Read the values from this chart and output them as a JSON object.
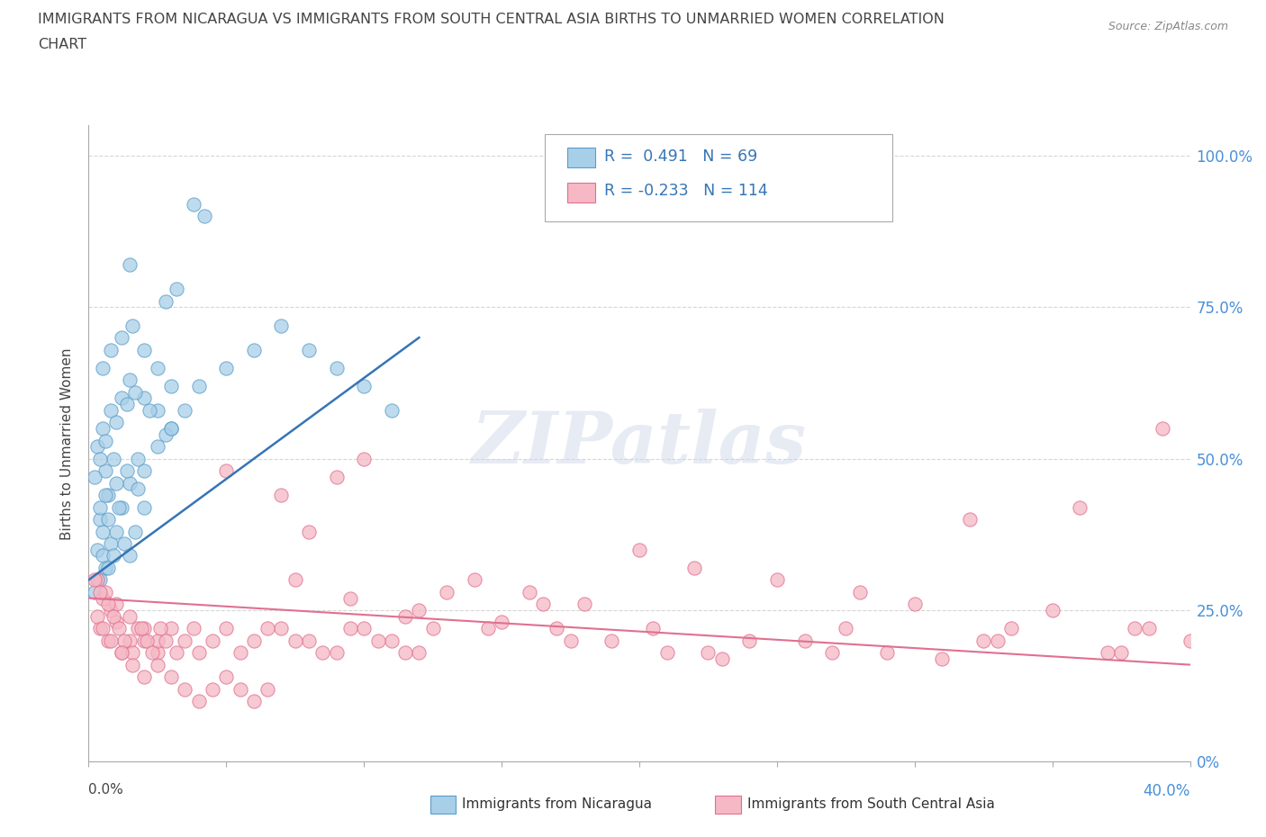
{
  "title_line1": "IMMIGRANTS FROM NICARAGUA VS IMMIGRANTS FROM SOUTH CENTRAL ASIA BIRTHS TO UNMARRIED WOMEN CORRELATION",
  "title_line2": "CHART",
  "source": "Source: ZipAtlas.com",
  "ylabel": "Births to Unmarried Women",
  "ytick_vals": [
    0,
    25,
    50,
    75,
    100
  ],
  "ytick_labels": [
    "0%",
    "25.0%",
    "50.0%",
    "75.0%",
    "100.0%"
  ],
  "right_ytick_labels": [
    "0%",
    "25.0%",
    "50.0%",
    "75.0%",
    "100.0%"
  ],
  "xlim": [
    0,
    40
  ],
  "ylim": [
    0,
    105
  ],
  "nicaragua_color": "#a8cfe8",
  "nicaragua_edge": "#5b9dc9",
  "sca_color": "#f5b8c4",
  "sca_edge": "#e07090",
  "nic_line_color": "#3575b5",
  "sca_line_color": "#e07090",
  "watermark": "ZIPatlas",
  "nic_trend": [
    0.0,
    30.0,
    12.0,
    70.0
  ],
  "sca_trend": [
    0.0,
    27.0,
    40.0,
    16.0
  ],
  "nicaragua_points": [
    [
      0.3,
      35
    ],
    [
      0.5,
      34
    ],
    [
      0.8,
      36
    ],
    [
      1.0,
      38
    ],
    [
      0.4,
      40
    ],
    [
      0.7,
      44
    ],
    [
      1.2,
      42
    ],
    [
      1.5,
      46
    ],
    [
      0.6,
      48
    ],
    [
      0.9,
      50
    ],
    [
      1.8,
      45
    ],
    [
      2.0,
      42
    ],
    [
      0.3,
      52
    ],
    [
      0.5,
      55
    ],
    [
      0.8,
      58
    ],
    [
      1.2,
      60
    ],
    [
      1.5,
      63
    ],
    [
      2.0,
      60
    ],
    [
      2.5,
      58
    ],
    [
      3.0,
      55
    ],
    [
      0.2,
      47
    ],
    [
      0.4,
      50
    ],
    [
      0.6,
      53
    ],
    [
      1.0,
      56
    ],
    [
      1.4,
      59
    ],
    [
      1.7,
      61
    ],
    [
      2.2,
      58
    ],
    [
      2.8,
      54
    ],
    [
      0.5,
      65
    ],
    [
      0.8,
      68
    ],
    [
      1.2,
      70
    ],
    [
      1.6,
      72
    ],
    [
      2.0,
      68
    ],
    [
      2.5,
      65
    ],
    [
      3.0,
      62
    ],
    [
      0.4,
      42
    ],
    [
      0.6,
      44
    ],
    [
      1.0,
      46
    ],
    [
      1.4,
      48
    ],
    [
      1.8,
      50
    ],
    [
      0.3,
      30
    ],
    [
      0.6,
      32
    ],
    [
      0.9,
      34
    ],
    [
      1.3,
      36
    ],
    [
      1.7,
      38
    ],
    [
      0.5,
      38
    ],
    [
      0.7,
      40
    ],
    [
      1.1,
      42
    ],
    [
      2.0,
      48
    ],
    [
      2.5,
      52
    ],
    [
      3.0,
      55
    ],
    [
      3.5,
      58
    ],
    [
      4.0,
      62
    ],
    [
      5.0,
      65
    ],
    [
      6.0,
      68
    ],
    [
      7.0,
      72
    ],
    [
      8.0,
      68
    ],
    [
      9.0,
      65
    ],
    [
      10.0,
      62
    ],
    [
      11.0,
      58
    ],
    [
      0.2,
      28
    ],
    [
      0.4,
      30
    ],
    [
      0.7,
      32
    ],
    [
      1.5,
      34
    ],
    [
      2.8,
      76
    ],
    [
      3.2,
      78
    ],
    [
      3.8,
      92
    ],
    [
      4.2,
      90
    ],
    [
      1.5,
      82
    ]
  ],
  "sca_points": [
    [
      0.3,
      30
    ],
    [
      0.5,
      27
    ],
    [
      0.8,
      25
    ],
    [
      1.0,
      23
    ],
    [
      1.5,
      20
    ],
    [
      0.4,
      22
    ],
    [
      0.7,
      20
    ],
    [
      1.2,
      18
    ],
    [
      1.8,
      22
    ],
    [
      2.0,
      20
    ],
    [
      2.5,
      18
    ],
    [
      0.6,
      28
    ],
    [
      1.0,
      26
    ],
    [
      1.5,
      24
    ],
    [
      2.0,
      22
    ],
    [
      2.5,
      20
    ],
    [
      3.0,
      22
    ],
    [
      3.5,
      20
    ],
    [
      4.0,
      18
    ],
    [
      5.0,
      22
    ],
    [
      6.0,
      20
    ],
    [
      7.0,
      22
    ],
    [
      8.0,
      20
    ],
    [
      9.0,
      18
    ],
    [
      10.0,
      22
    ],
    [
      11.0,
      20
    ],
    [
      12.0,
      18
    ],
    [
      0.2,
      30
    ],
    [
      0.4,
      28
    ],
    [
      0.7,
      26
    ],
    [
      0.9,
      24
    ],
    [
      1.1,
      22
    ],
    [
      1.3,
      20
    ],
    [
      1.6,
      18
    ],
    [
      1.9,
      22
    ],
    [
      2.1,
      20
    ],
    [
      2.3,
      18
    ],
    [
      2.6,
      22
    ],
    [
      2.8,
      20
    ],
    [
      3.2,
      18
    ],
    [
      3.8,
      22
    ],
    [
      4.5,
      20
    ],
    [
      5.5,
      18
    ],
    [
      6.5,
      22
    ],
    [
      7.5,
      20
    ],
    [
      8.5,
      18
    ],
    [
      9.5,
      22
    ],
    [
      10.5,
      20
    ],
    [
      11.5,
      18
    ],
    [
      12.5,
      22
    ],
    [
      0.3,
      24
    ],
    [
      0.5,
      22
    ],
    [
      0.8,
      20
    ],
    [
      1.2,
      18
    ],
    [
      1.6,
      16
    ],
    [
      2.0,
      14
    ],
    [
      2.5,
      16
    ],
    [
      3.0,
      14
    ],
    [
      3.5,
      12
    ],
    [
      4.0,
      10
    ],
    [
      4.5,
      12
    ],
    [
      5.0,
      14
    ],
    [
      5.5,
      12
    ],
    [
      6.0,
      10
    ],
    [
      6.5,
      12
    ],
    [
      7.0,
      44
    ],
    [
      9.0,
      47
    ],
    [
      10.0,
      50
    ],
    [
      14.0,
      30
    ],
    [
      16.0,
      28
    ],
    [
      18.0,
      26
    ],
    [
      20.0,
      35
    ],
    [
      22.0,
      32
    ],
    [
      25.0,
      30
    ],
    [
      28.0,
      28
    ],
    [
      30.0,
      26
    ],
    [
      32.0,
      40
    ],
    [
      35.0,
      25
    ],
    [
      38.0,
      22
    ],
    [
      36.0,
      42
    ],
    [
      39.0,
      55
    ],
    [
      5.0,
      48
    ],
    [
      8.0,
      38
    ],
    [
      12.0,
      25
    ],
    [
      15.0,
      23
    ],
    [
      17.0,
      22
    ],
    [
      19.0,
      20
    ],
    [
      21.0,
      18
    ],
    [
      23.0,
      17
    ],
    [
      26.0,
      20
    ],
    [
      29.0,
      18
    ],
    [
      31.0,
      17
    ],
    [
      33.0,
      20
    ],
    [
      37.0,
      18
    ],
    [
      13.0,
      28
    ],
    [
      16.5,
      26
    ],
    [
      20.5,
      22
    ],
    [
      24.0,
      20
    ],
    [
      27.0,
      18
    ],
    [
      33.5,
      22
    ],
    [
      38.5,
      22
    ],
    [
      40.0,
      20
    ],
    [
      7.5,
      30
    ],
    [
      9.5,
      27
    ],
    [
      11.5,
      24
    ],
    [
      14.5,
      22
    ],
    [
      17.5,
      20
    ],
    [
      22.5,
      18
    ],
    [
      27.5,
      22
    ],
    [
      32.5,
      20
    ],
    [
      37.5,
      18
    ]
  ]
}
